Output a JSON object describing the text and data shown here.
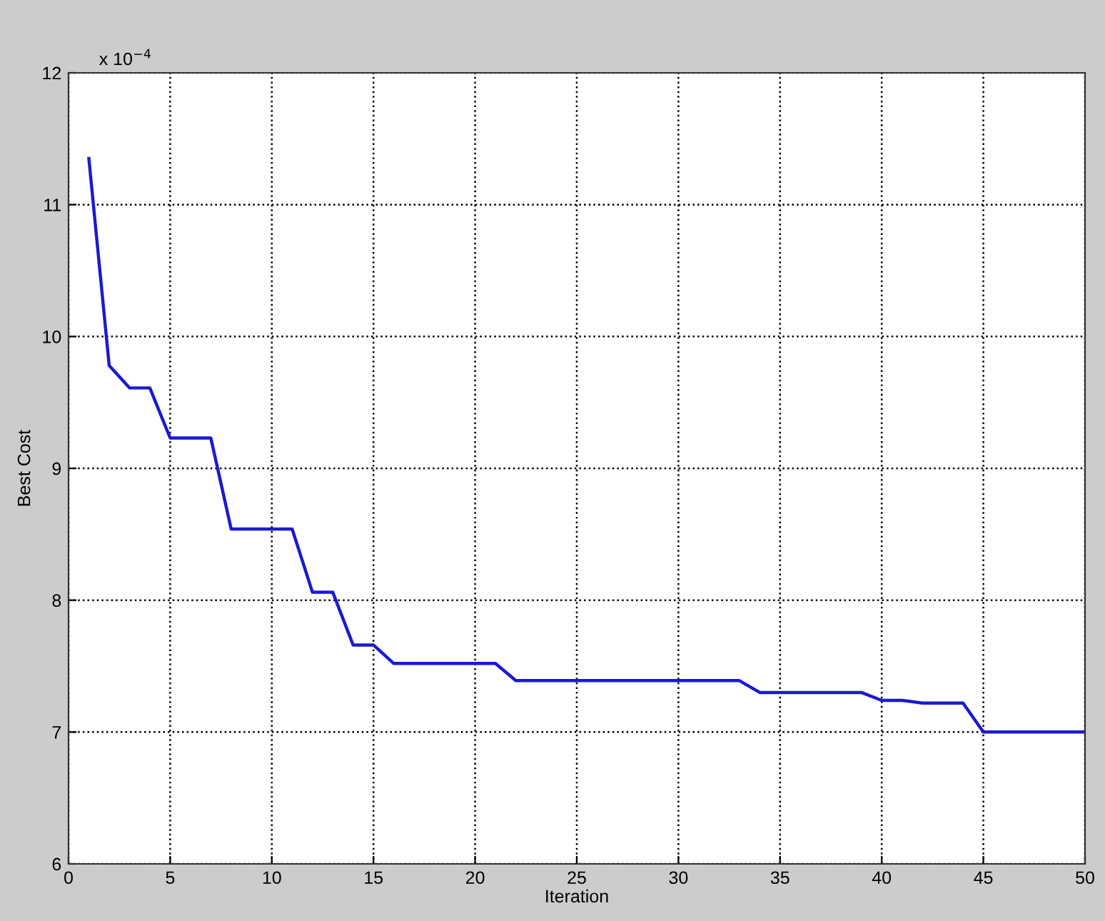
{
  "chart_data": {
    "type": "line",
    "xlabel": "Iteration",
    "ylabel": "Best Cost",
    "annotations": [
      "x 10$^{−4}$"
    ],
    "x": [
      1,
      2,
      3,
      4,
      5,
      6,
      7,
      8,
      9,
      10,
      11,
      12,
      13,
      14,
      15,
      16,
      17,
      18,
      19,
      20,
      21,
      22,
      23,
      24,
      25,
      26,
      27,
      28,
      29,
      30,
      31,
      32,
      33,
      34,
      35,
      36,
      37,
      38,
      39,
      40,
      41,
      42,
      43,
      44,
      45,
      46,
      47,
      48,
      49,
      50
    ],
    "series": [
      {
        "color": "#1a1ad0",
        "values": [
          11.35,
          9.78,
          9.61,
          9.61,
          9.23,
          9.23,
          9.23,
          8.54,
          8.54,
          8.54,
          8.54,
          8.06,
          8.06,
          7.66,
          7.66,
          7.52,
          7.52,
          7.52,
          7.52,
          7.52,
          7.52,
          7.39,
          7.39,
          7.39,
          7.39,
          7.39,
          7.39,
          7.39,
          7.39,
          7.39,
          7.39,
          7.39,
          7.39,
          7.3,
          7.3,
          7.3,
          7.3,
          7.3,
          7.3,
          7.24,
          7.24,
          7.22,
          7.22,
          7.22,
          7.0,
          7.0,
          7.0,
          7.0,
          7.0,
          7.0
        ]
      }
    ],
    "xlim": [
      0,
      50
    ],
    "xticks": [
      0,
      5,
      10,
      15,
      20,
      25,
      30,
      35,
      40,
      45,
      50
    ],
    "ylim": [
      6,
      12
    ],
    "yticks": [
      6,
      7,
      8,
      9,
      10,
      11,
      12
    ],
    "grid": true,
    "line_style": "solid",
    "marker": "none"
  }
}
